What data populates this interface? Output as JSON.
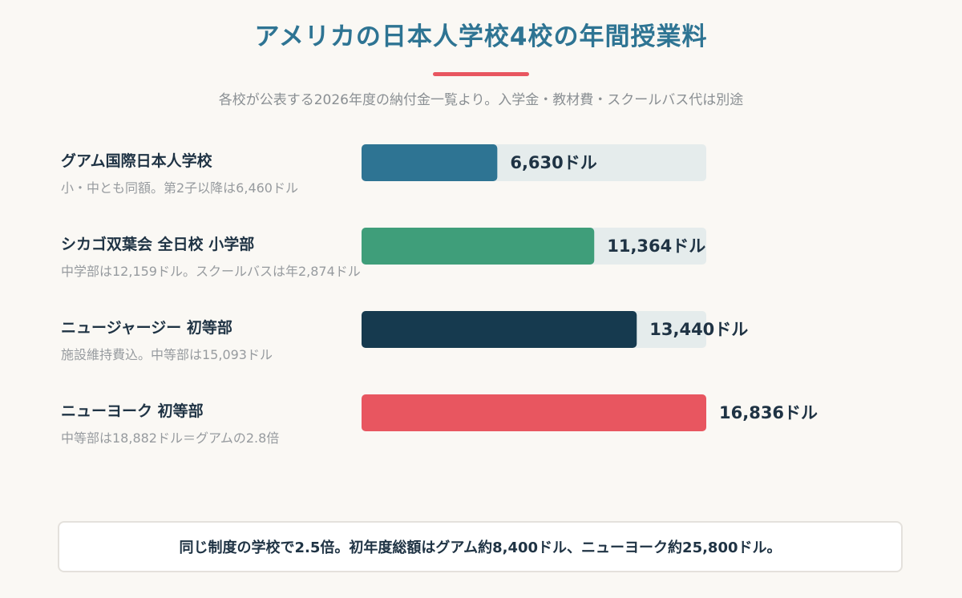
{
  "chart_data": {
    "type": "bar",
    "orientation": "horizontal",
    "title": "アメリカの日本人学校4校の年間授業料",
    "subtitle": "各校が公表する2026年度の納付金一覧より。入学金・教材費・スクールバス代は別途",
    "value_suffix": "ドル",
    "xlim": [
      0,
      16836
    ],
    "categories": [
      "グアム国際日本人学校",
      "シカゴ双葉会 全日校 小学部",
      "ニュージャージー 初等部",
      "ニューヨーク 初等部"
    ],
    "notes": [
      "小・中とも同額。第2子以降は6,460ドル",
      "中学部は12,159ドル。スクールバスは年2,874ドル",
      "施設維持費込。中等部は15,093ドル",
      "中等部は18,882ドル＝グアムの2.8倍"
    ],
    "values": [
      6630,
      11364,
      13440,
      16836
    ],
    "value_labels": [
      "6,630ドル",
      "11,364ドル",
      "13,440ドル",
      "16,836ドル"
    ],
    "colors": [
      "#2e7493",
      "#3f9e7a",
      "#163a4f",
      "#e85660"
    ],
    "track_color": "#e5ecec",
    "grid": false
  },
  "footer": {
    "text": "同じ制度の学校で2.5倍。初年度総額はグアム約8,400ドル、ニューヨーク約25,800ドル。"
  }
}
